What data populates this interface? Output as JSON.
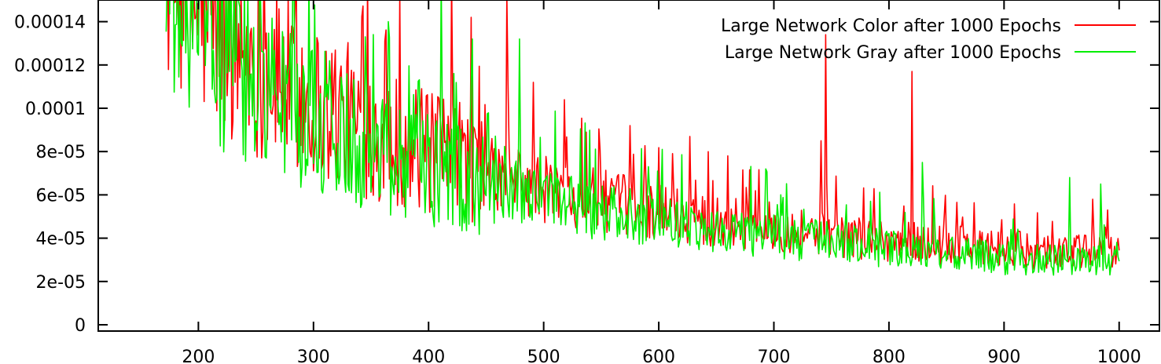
{
  "chart_data": {
    "type": "line",
    "title": "",
    "xlabel": "",
    "ylabel": "",
    "xlim": [
      113,
      1035
    ],
    "ylim": [
      0,
      0.00015
    ],
    "grid": false,
    "legend_position": "top-right",
    "x_ticks": [
      200,
      300,
      400,
      500,
      600,
      700,
      800,
      900,
      1000
    ],
    "x_tick_labels": [
      "200",
      "300",
      "400",
      "500",
      "600",
      "700",
      "800",
      "900",
      "1000"
    ],
    "y_ticks": [
      0,
      2e-05,
      4e-05,
      6e-05,
      8e-05,
      0.0001,
      0.00012,
      0.00014
    ],
    "y_tick_labels": [
      "0",
      "2e-05",
      "4e-05",
      "6e-05",
      "8e-05",
      "0.0001",
      "0.00012",
      "0.00014"
    ],
    "series": [
      {
        "name": "Large Network Color after 1000 Epochs",
        "color": "#ff0000",
        "x_range": [
          172,
          1000
        ],
        "trend": [
          [
            172,
            0.00016
          ],
          [
            200,
            0.00014
          ],
          [
            250,
            0.000118
          ],
          [
            300,
            0.0001
          ],
          [
            350,
            8.7e-05
          ],
          [
            400,
            7.6e-05
          ],
          [
            450,
            6.8e-05
          ],
          [
            500,
            6.1e-05
          ],
          [
            550,
            5.6e-05
          ],
          [
            600,
            5.1e-05
          ],
          [
            650,
            4.7e-05
          ],
          [
            700,
            4.4e-05
          ],
          [
            750,
            4.1e-05
          ],
          [
            800,
            3.8e-05
          ],
          [
            850,
            3.6e-05
          ],
          [
            900,
            3.4e-05
          ],
          [
            950,
            3.3e-05
          ],
          [
            1000,
            3.2e-05
          ]
        ],
        "spikes": [
          [
            347,
            0.00016
          ],
          [
            375,
            0.000152
          ],
          [
            420,
            0.00016
          ],
          [
            437,
            0.000142
          ],
          [
            468,
            0.000152
          ],
          [
            491,
            0.000112
          ],
          [
            518,
            0.000104
          ],
          [
            537,
            8.9e-05
          ],
          [
            575,
            9.2e-05
          ],
          [
            627,
            8.7e-05
          ],
          [
            660,
            7.8e-05
          ],
          [
            745,
            0.000134
          ],
          [
            741,
            8.5e-05
          ],
          [
            820,
            0.000117
          ],
          [
            848,
            5e-05
          ],
          [
            978,
            4.3e-05
          ],
          [
            990,
            5.3e-05
          ]
        ]
      },
      {
        "name": "Large Network Gray after 1000 Epochs",
        "color": "#00ee00",
        "x_range": [
          172,
          1000
        ],
        "trend": [
          [
            172,
            0.00015
          ],
          [
            200,
            0.00013
          ],
          [
            250,
            0.000108
          ],
          [
            300,
            9.2e-05
          ],
          [
            350,
            8e-05
          ],
          [
            400,
            6.9e-05
          ],
          [
            450,
            6.2e-05
          ],
          [
            500,
            5.6e-05
          ],
          [
            550,
            5.1e-05
          ],
          [
            600,
            4.7e-05
          ],
          [
            650,
            4.3e-05
          ],
          [
            700,
            4e-05
          ],
          [
            750,
            3.7e-05
          ],
          [
            800,
            3.4e-05
          ],
          [
            850,
            3.2e-05
          ],
          [
            900,
            3e-05
          ],
          [
            950,
            2.9e-05
          ],
          [
            1000,
            2.8e-05
          ]
        ],
        "spikes": [
          [
            296,
            0.00016
          ],
          [
            365,
            0.00014
          ],
          [
            411,
            0.00016
          ],
          [
            438,
            0.000132
          ],
          [
            479,
            0.000132
          ],
          [
            603,
            8.1e-05
          ],
          [
            693,
            7.2e-05
          ],
          [
            829,
            7.5e-05
          ],
          [
            957,
            6.8e-05
          ],
          [
            984,
            6.5e-05
          ],
          [
            998,
            3.8e-05
          ]
        ]
      }
    ]
  }
}
